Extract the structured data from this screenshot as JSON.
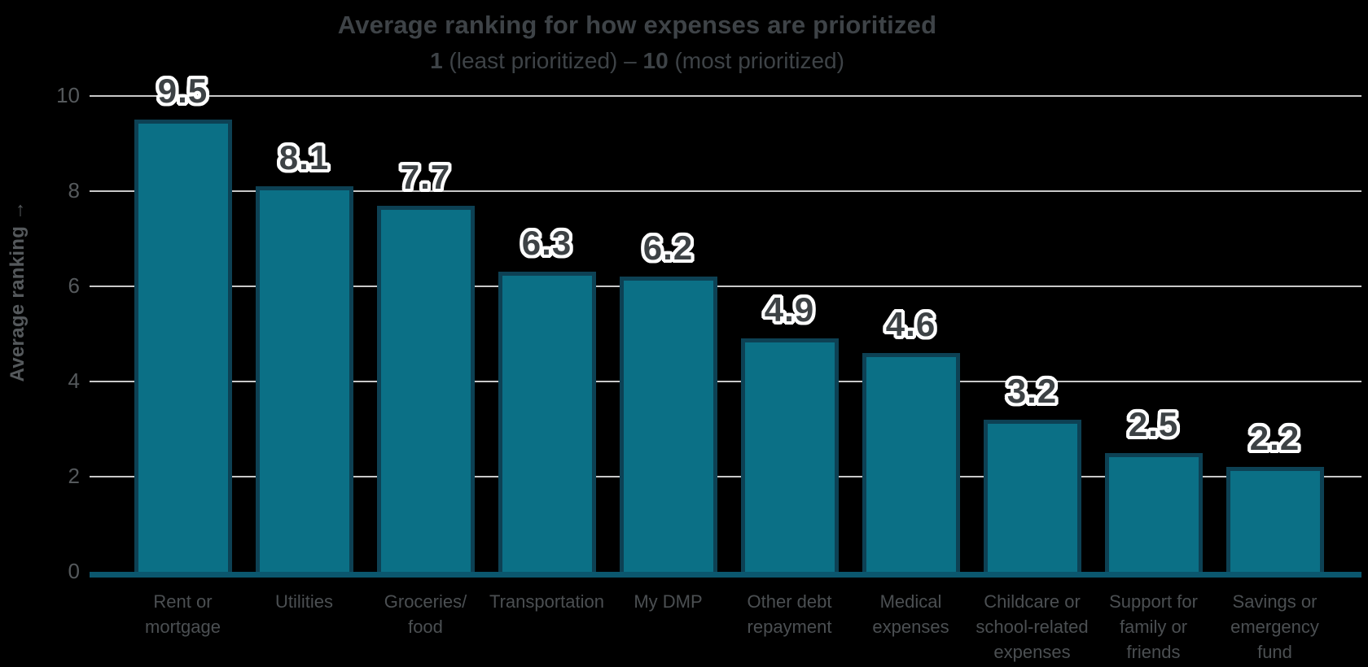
{
  "background": "#000000",
  "title": {
    "text": "Average ranking for how expenses are prioritized"
  },
  "subtitle": {
    "min_bold": "1",
    "between": " (least prioritized) – ",
    "max_bold": "10",
    "suffix": " (most prioritized)"
  },
  "y_axis": {
    "title": "Average ranking →"
  },
  "colors": {
    "background": "#000000",
    "bar_fill": "#0B7086",
    "bar_border": "#0D4154",
    "baseline": "#0B576E",
    "gridline": "#C9C9C9",
    "title_text": "#3E4347",
    "tick_text": "#55595C",
    "label_text": "#4B4F52",
    "value_text": "#3D4245",
    "value_outline": "#FFFFFF"
  },
  "chart_data": {
    "type": "bar",
    "title": "Average ranking for how expenses are prioritized",
    "subtitle": "1 (least prioritized) – 10 (most prioritized)",
    "categories": [
      "Rent or\nmortgage",
      "Utilities",
      "Groceries/\nfood",
      "Transportation",
      "My DMP",
      "Other debt\nrepayment",
      "Medical\nexpenses",
      "Childcare or\nschool-related\nexpenses",
      "Support for\nfamily or\nfriends",
      "Savings or\nemergency\nfund"
    ],
    "values": [
      9.5,
      8.1,
      7.7,
      6.3,
      6.2,
      4.9,
      4.6,
      3.2,
      2.5,
      2.2
    ],
    "value_labels": [
      "9.5",
      "8.1",
      "7.7",
      "6.3",
      "6.2",
      "4.9",
      "4.6",
      "3.2",
      "2.5",
      "2.2"
    ],
    "xlabel": "",
    "ylabel": "Average ranking",
    "ylim": [
      0,
      10
    ],
    "yticks": [
      0,
      2,
      4,
      6,
      8,
      10
    ],
    "grid": true,
    "legend": false,
    "bar_color": "#0B7086"
  }
}
